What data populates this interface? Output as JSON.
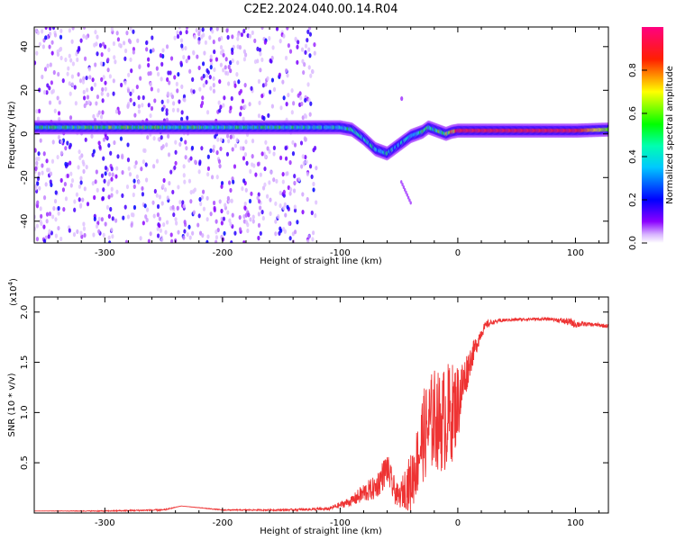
{
  "title": "C2E2.2024.040.00.14.R04",
  "chart_data": [
    {
      "type": "heatmap",
      "xlabel": "Height of straight line (km)",
      "ylabel": "Frequency (Hz)",
      "xlim": [
        -360,
        128
      ],
      "ylim": [
        -50,
        49
      ],
      "xticks": [
        -300,
        -200,
        -100,
        0,
        100
      ],
      "xtick_labels": [
        "-300",
        "-200",
        "-100",
        "0",
        "100"
      ],
      "yticks": [
        -40,
        -20,
        0,
        20,
        40
      ],
      "ytick_labels": [
        "-40",
        "-20",
        "0",
        "20",
        "40"
      ],
      "colorbar": {
        "label": "Normalized spectral amplitude",
        "range": [
          0,
          1
        ],
        "ticks": [
          0.0,
          0.2,
          0.4,
          0.6,
          0.8
        ],
        "tick_labels": [
          "0.0",
          "0.2",
          "0.4",
          "0.6",
          "0.8"
        ],
        "colormap": [
          "#ffffff",
          "#8a00ff",
          "#0000ff",
          "#00ffff",
          "#00ff00",
          "#ffff00",
          "#ff0000",
          "#ff0080"
        ]
      },
      "ridge": {
        "x": [
          -360,
          -300,
          -250,
          -200,
          -150,
          -120,
          -100,
          -90,
          -80,
          -70,
          -60,
          -50,
          -40,
          -35,
          -30,
          -25,
          -20,
          -15,
          -10,
          -5,
          0,
          50,
          100,
          128
        ],
        "y": [
          3,
          3,
          3,
          3,
          3,
          3,
          3,
          2,
          -2,
          -7,
          -9,
          -5,
          -1,
          0,
          1,
          3,
          2,
          1,
          0,
          1,
          1.5,
          1.5,
          1.5,
          2
        ],
        "amplitude": [
          0.45,
          0.5,
          0.5,
          0.45,
          0.45,
          0.4,
          0.42,
          0.4,
          0.38,
          0.35,
          0.38,
          0.3,
          0.35,
          0.4,
          0.55,
          0.5,
          0.45,
          0.5,
          0.55,
          0.7,
          0.9,
          0.9,
          0.9,
          0.6
        ]
      },
      "grid": false
    },
    {
      "type": "line",
      "xlabel": "Height of straight line (km)",
      "ylabel": "SNR (10 * v/v)",
      "y_scale_label": "(x10",
      "y_scale_exponent": "4",
      "xlim": [
        -360,
        128
      ],
      "ylim": [
        0,
        2.15
      ],
      "xticks": [
        -300,
        -200,
        -100,
        0,
        100
      ],
      "xtick_labels": [
        "-300",
        "-200",
        "-100",
        "0",
        "100"
      ],
      "yticks": [
        0.5,
        1.0,
        1.5,
        2.0
      ],
      "ytick_labels": [
        "0.5",
        "1.0",
        "1.5",
        "2.0"
      ],
      "series": [
        {
          "color": "#ee3333",
          "x": [
            -360,
            -300,
            -250,
            -235,
            -200,
            -150,
            -110,
            -90,
            -80,
            -70,
            -65,
            -60,
            -55,
            -50,
            -45,
            -40,
            -35,
            -30,
            -25,
            -20,
            -15,
            -10,
            -5,
            0,
            5,
            10,
            15,
            20,
            25,
            30,
            40,
            60,
            80,
            95,
            100,
            110,
            120,
            128
          ],
          "y": [
            0.02,
            0.02,
            0.03,
            0.07,
            0.03,
            0.03,
            0.04,
            0.12,
            0.2,
            0.25,
            0.35,
            0.45,
            0.25,
            0.15,
            0.25,
            0.3,
            0.5,
            0.75,
            0.85,
            0.95,
            0.9,
            0.95,
            1.0,
            1.1,
            1.3,
            1.5,
            1.65,
            1.8,
            1.88,
            1.9,
            1.92,
            1.93,
            1.93,
            1.9,
            1.88,
            1.88,
            1.87,
            1.86
          ],
          "noise": [
            0.0,
            0.005,
            0.008,
            0.0,
            0.005,
            0.008,
            0.015,
            0.05,
            0.1,
            0.12,
            0.15,
            0.15,
            0.15,
            0.1,
            0.2,
            0.3,
            0.35,
            0.45,
            0.5,
            0.5,
            0.5,
            0.55,
            0.5,
            0.4,
            0.25,
            0.15,
            0.1,
            0.06,
            0.04,
            0.02,
            0.015,
            0.015,
            0.015,
            0.04,
            0.04,
            0.02,
            0.02,
            0.02
          ]
        }
      ],
      "grid": false
    }
  ]
}
